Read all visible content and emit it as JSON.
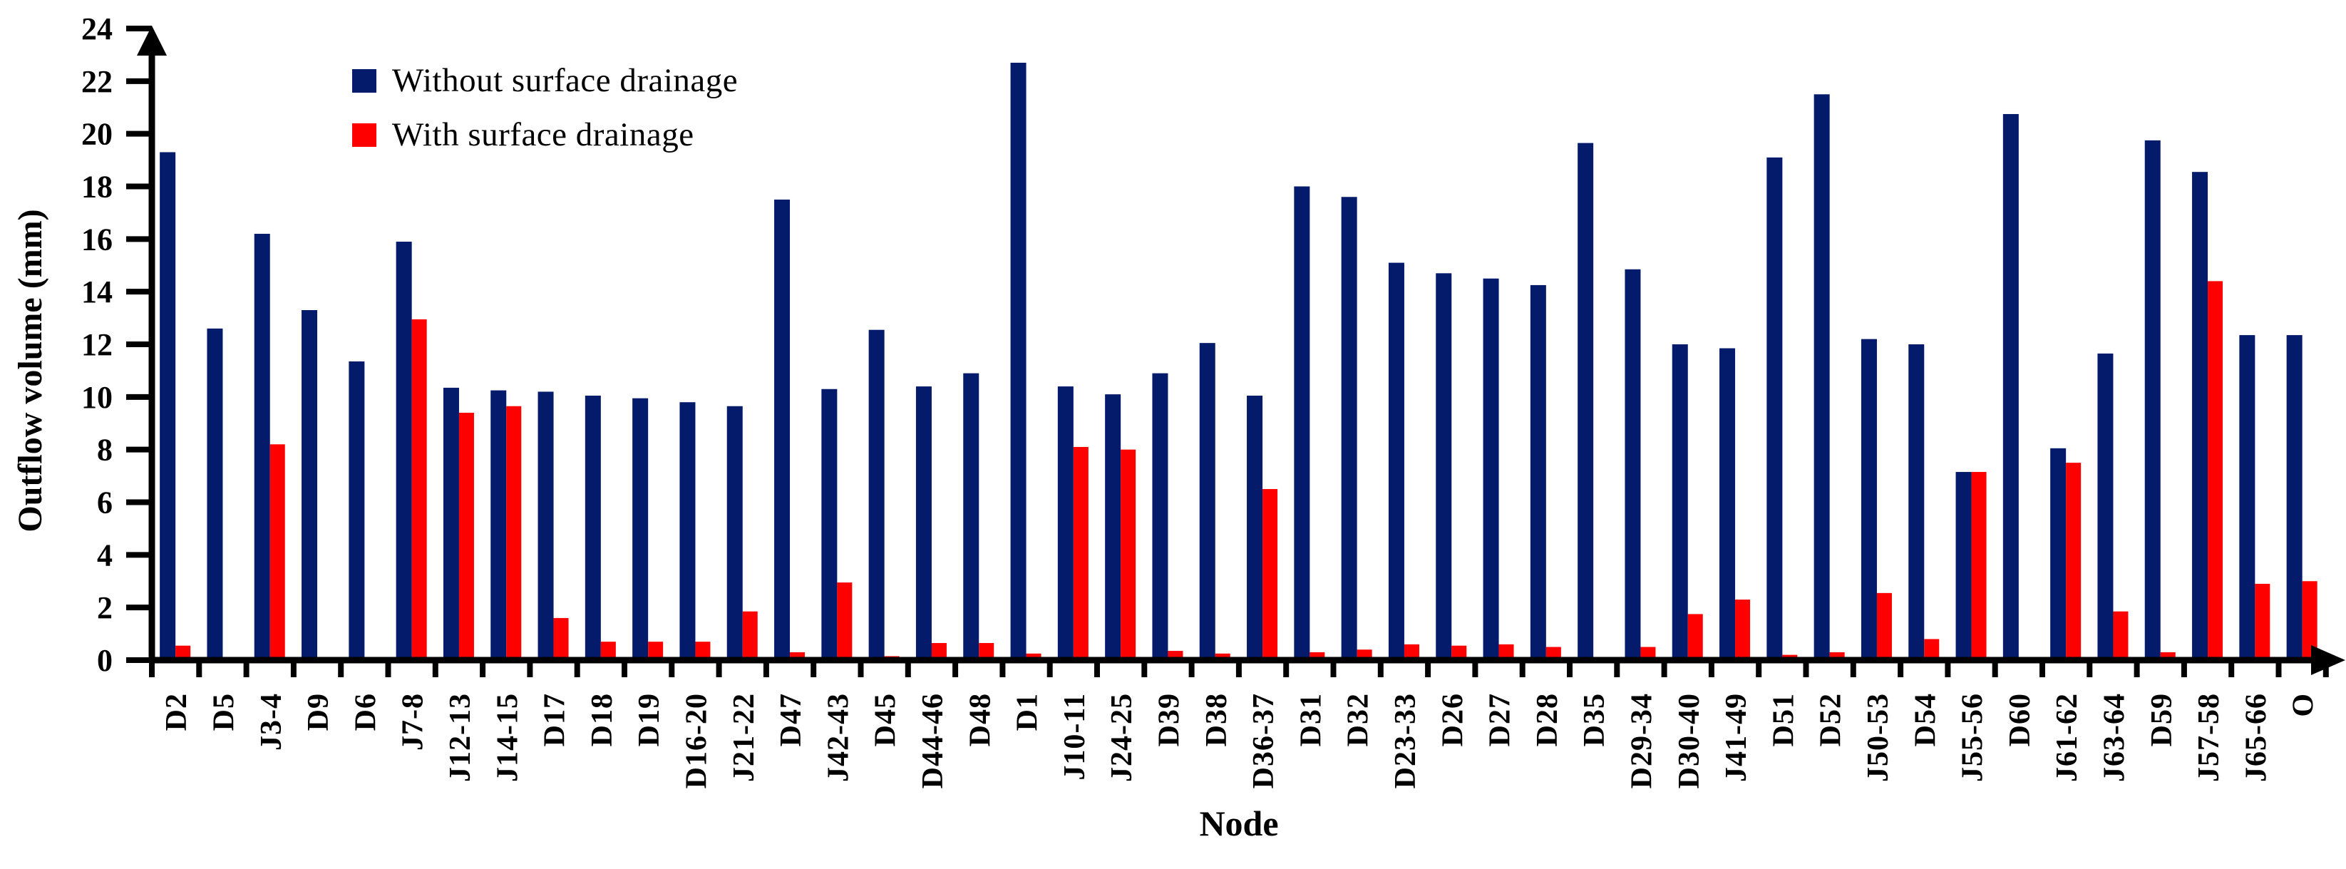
{
  "chart_data": {
    "type": "bar",
    "title": "",
    "xlabel": "Node",
    "ylabel": "Outflow volume (mm)",
    "ylim": [
      0,
      24
    ],
    "ytick_step": 2,
    "grid": false,
    "legend_position": "top-left-inside",
    "axis_color": "#000000",
    "categories": [
      "D2",
      "D5",
      "J3-4",
      "D9",
      "D6",
      "J7-8",
      "J12-13",
      "J14-15",
      "D17",
      "D18",
      "D19",
      "D16-20",
      "J21-22",
      "D47",
      "J42-43",
      "D45",
      "D44-46",
      "D48",
      "D1",
      "J10-11",
      "J24-25",
      "D39",
      "D38",
      "D36-37",
      "D31",
      "D32",
      "D23-33",
      "D26",
      "D27",
      "D28",
      "D35",
      "D29-34",
      "D30-40",
      "J41-49",
      "D51",
      "D52",
      "J50-53",
      "D54",
      "J55-56",
      "D60",
      "J61-62",
      "J63-64",
      "D59",
      "J57-58",
      "J65-66",
      "O"
    ],
    "series": [
      {
        "name": "Without surface drainage",
        "color": "#041a6b",
        "values": [
          19.3,
          12.6,
          16.2,
          13.3,
          11.35,
          15.9,
          10.35,
          10.25,
          10.2,
          10.05,
          9.95,
          9.8,
          9.65,
          17.5,
          10.3,
          12.55,
          10.4,
          10.9,
          22.7,
          10.4,
          10.1,
          10.9,
          12.05,
          10.05,
          18.0,
          17.6,
          15.1,
          14.7,
          14.5,
          14.25,
          19.65,
          14.85,
          12.0,
          11.85,
          19.1,
          21.5,
          12.2,
          12.0,
          7.15,
          20.75,
          8.05,
          11.65,
          19.75,
          18.55,
          12.35,
          12.35
        ]
      },
      {
        "name": "With surface drainage",
        "color": "#fe0000",
        "values": [
          0.55,
          0,
          8.2,
          0,
          0,
          12.95,
          9.4,
          9.65,
          1.6,
          0.7,
          0.7,
          0.7,
          1.85,
          0.3,
          2.95,
          0.15,
          0.65,
          0.65,
          0.25,
          8.1,
          8.0,
          0.35,
          0.25,
          6.5,
          0.3,
          0.4,
          0.6,
          0.55,
          0.6,
          0.5,
          0.1,
          0.5,
          1.75,
          2.3,
          0.2,
          0.3,
          2.55,
          0.8,
          7.15,
          0.1,
          7.5,
          1.85,
          0.3,
          14.4,
          2.9,
          3.0
        ]
      }
    ]
  }
}
